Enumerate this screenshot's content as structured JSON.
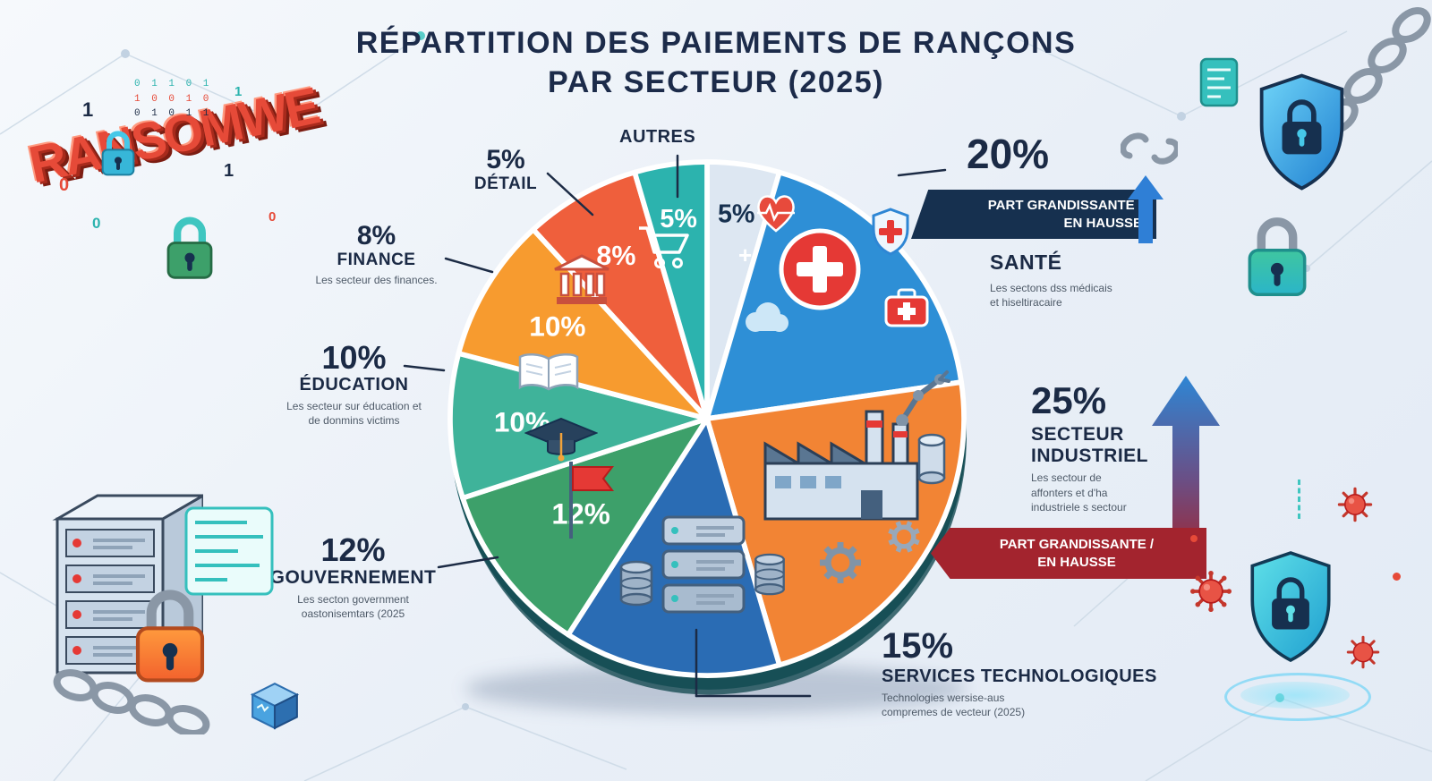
{
  "title": {
    "line1": "RÉPARTITION DES PAIEMENTS DE RANÇONS",
    "line2": "PAR SECTEUR (2025)"
  },
  "chart_data": {
    "type": "pie",
    "title": "Répartition des paiements de rançons par secteur (2025)",
    "unit": "%",
    "direction": "clockwise",
    "start_angle_deg": -90,
    "legend_position": "callouts",
    "slices": [
      {
        "id": "autres",
        "label": "Autres",
        "value": 5,
        "color": "#dde7f2",
        "label_color": "#16304f",
        "label_r": 0.8
      },
      {
        "id": "sante",
        "label": "Santé",
        "value": 20,
        "color": "#2e8fd6"
      },
      {
        "id": "industriel",
        "label": "Secteur industriel",
        "value": 25,
        "color": "#f28434"
      },
      {
        "id": "technologies",
        "label": "Services technologiques",
        "value": 15,
        "color": "#2a6cb4"
      },
      {
        "id": "gouvernement",
        "label": "Gouvernement",
        "value": 12,
        "color": "#3da06a",
        "label_color": "#ffffff",
        "label_r": 0.62
      },
      {
        "id": "slice-teal",
        "label": "",
        "value": 10,
        "color": "#3fb39a",
        "label_color": "#ffffff",
        "label_r": 0.72
      },
      {
        "id": "education",
        "label": "Éducation",
        "value": 10,
        "color": "#f79b2f",
        "label_color": "#ffffff",
        "label_r": 0.68
      },
      {
        "id": "finance",
        "label": "Finance",
        "value": 8,
        "color": "#ef5f3c",
        "label_color": "#ffffff",
        "label_r": 0.72
      },
      {
        "id": "detail",
        "label": "Détail",
        "value": 5,
        "color": "#2cb3ae",
        "label_color": "#ffffff",
        "label_r": 0.78
      }
    ]
  },
  "callouts": {
    "autres": {
      "label": "AUTRES"
    },
    "detail": {
      "percent": "5%",
      "label": "DÉTAIL"
    },
    "finance": {
      "percent": "8%",
      "label": "FINANCE",
      "sub": "Les secteur des finances."
    },
    "education": {
      "percent": "10%",
      "label": "ÉDUCATION",
      "sub": "Les secteur sur éducation et\nde donmins victims"
    },
    "gouvernement": {
      "percent": "12%",
      "label": "GOUVERNEMENT",
      "sub": "Les secton government\noastonisemtars (2025"
    },
    "sante": {
      "percent": "20%",
      "badge": "PART GRANDISSANTE /\nEN HAUSSE",
      "label": "SANTÉ",
      "sub": "Les sectons dss médicais\net hiseltiracaire"
    },
    "industriel": {
      "percent": "25%",
      "label": "SECTEUR\nINDUSTRIEL",
      "sub": "Les sectour de\naffonters et d'ha\nindustriele s sectour",
      "badge": "PART GRANDISSANTE /\nEN HAUSSE"
    },
    "technologies": {
      "percent": "15%",
      "label": "SERVICES TECHNOLOGIQUES",
      "sub": "Technologies wersise-aus\ncompremes de vecteur (2025)"
    }
  },
  "decor": {
    "ransom_text": "RANSOMWE",
    "digits": [
      "1",
      "0",
      "1",
      "0",
      "1",
      "0"
    ],
    "code_lines": [
      "0 1 1 0 1",
      "1 0 0 1 0",
      "0 1 0 1 1"
    ],
    "plus_marks": [
      "+",
      "+"
    ]
  },
  "colors": {
    "badge_navy": "#16304f",
    "badge_red": "#a3242e",
    "accent_blue": "#2e8fd6",
    "accent_teal": "#2cb3ae",
    "virus_red": "#e64a38",
    "title_navy": "#1c2b4a"
  }
}
